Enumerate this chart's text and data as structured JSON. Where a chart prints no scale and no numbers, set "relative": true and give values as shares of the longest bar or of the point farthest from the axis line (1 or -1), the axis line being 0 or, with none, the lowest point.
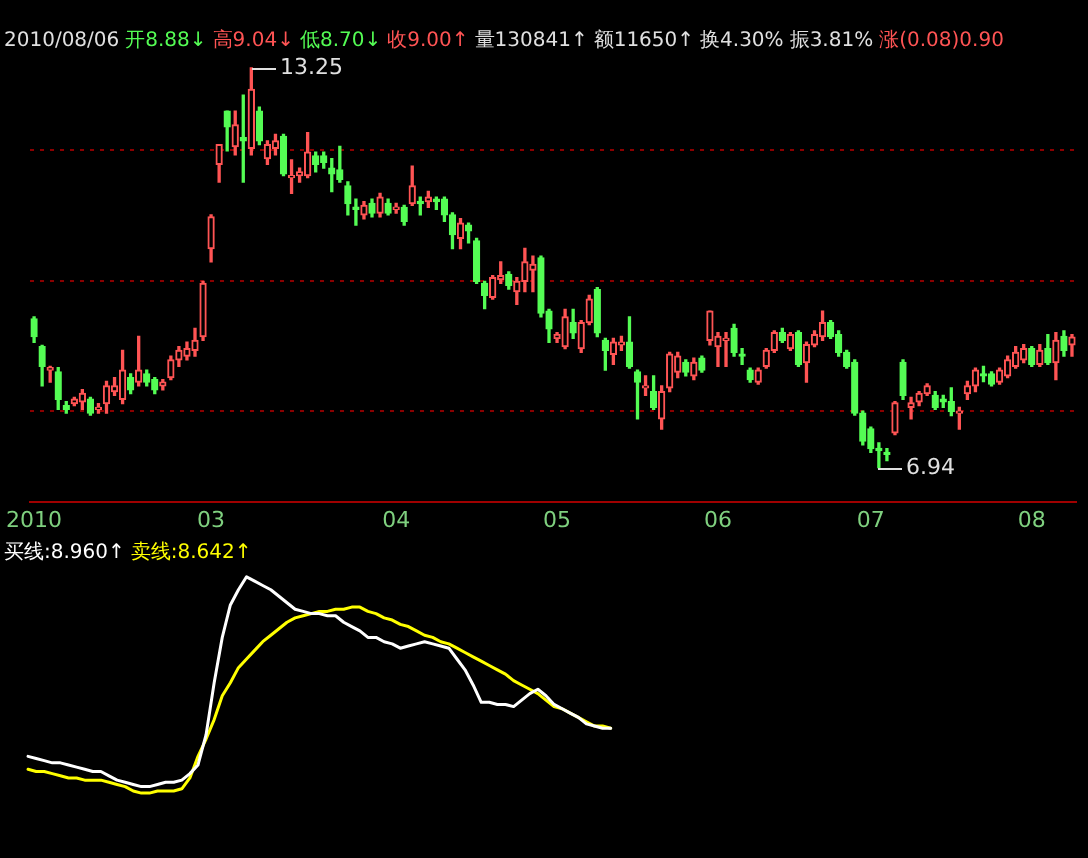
{
  "chart_data": [
    {
      "type": "candlestick",
      "annotations": [
        "2010/08/06",
        "开8.88↓",
        "高9.04↓",
        "低8.70↓",
        "收9.00↑",
        "量130841↑",
        "额11650↑",
        "换4.30%",
        "振3.81%",
        "涨(0.08)0.90",
        "13.25",
        "6.94"
      ],
      "categories": [
        "2010",
        null,
        null,
        null,
        null,
        null,
        null,
        null,
        null,
        null,
        null,
        null,
        null,
        null,
        null,
        null,
        null,
        null,
        null,
        null,
        null,
        null,
        "03",
        null,
        null,
        null,
        null,
        null,
        null,
        null,
        null,
        null,
        null,
        null,
        null,
        null,
        null,
        null,
        null,
        null,
        null,
        null,
        null,
        null,
        null,
        "04",
        null,
        null,
        null,
        null,
        null,
        null,
        null,
        null,
        null,
        null,
        null,
        null,
        null,
        null,
        null,
        null,
        null,
        null,
        null,
        "05",
        null,
        null,
        null,
        null,
        null,
        null,
        null,
        null,
        null,
        null,
        null,
        null,
        null,
        null,
        null,
        null,
        null,
        null,
        null,
        "06",
        null,
        null,
        null,
        null,
        null,
        null,
        null,
        null,
        null,
        null,
        null,
        null,
        null,
        null,
        null,
        null,
        null,
        null,
        "07",
        null,
        null,
        null,
        null,
        null,
        null,
        null,
        null,
        null,
        null,
        null,
        null,
        null,
        null,
        null,
        null,
        null,
        null,
        null,
        "08",
        null,
        null,
        null,
        null,
        null
      ],
      "ohlc": [
        [
          9.29,
          9.32,
          8.92,
          9.01
        ],
        [
          8.85,
          8.87,
          8.23,
          8.54
        ],
        [
          8.48,
          8.54,
          8.29,
          8.52
        ],
        [
          8.45,
          8.52,
          7.86,
          8.02
        ],
        [
          7.92,
          7.98,
          7.8,
          7.86
        ],
        [
          7.95,
          8.05,
          7.92,
          8.02
        ],
        [
          7.98,
          8.17,
          7.86,
          8.11
        ],
        [
          8.02,
          8.05,
          7.77,
          7.8
        ],
        [
          7.86,
          7.95,
          7.8,
          7.89
        ],
        [
          7.95,
          8.3,
          7.8,
          8.23
        ],
        [
          8.14,
          8.36,
          8.08,
          8.23
        ],
        [
          8.02,
          8.79,
          7.95,
          8.48
        ],
        [
          8.36,
          8.42,
          8.11,
          8.17
        ],
        [
          8.29,
          9.01,
          8.23,
          8.48
        ],
        [
          8.42,
          8.48,
          8.23,
          8.29
        ],
        [
          8.33,
          8.36,
          8.11,
          8.17
        ],
        [
          8.23,
          8.33,
          8.17,
          8.29
        ],
        [
          8.36,
          8.7,
          8.33,
          8.64
        ],
        [
          8.64,
          8.85,
          8.54,
          8.79
        ],
        [
          8.7,
          8.92,
          8.64,
          8.82
        ],
        [
          8.79,
          9.14,
          8.7,
          8.95
        ],
        [
          9.01,
          9.88,
          8.95,
          9.85
        ],
        [
          10.4,
          10.93,
          10.19,
          10.9
        ],
        [
          11.73,
          12.04,
          11.45,
          12.04
        ],
        [
          12.57,
          12.57,
          11.94,
          12.32
        ],
        [
          12.01,
          12.57,
          11.88,
          12.35
        ],
        [
          12.15,
          12.82,
          11.45,
          12.1
        ],
        [
          11.98,
          13.25,
          11.88,
          12.91
        ],
        [
          12.57,
          12.63,
          12.04,
          12.1
        ],
        [
          11.82,
          12.1,
          11.73,
          12.04
        ],
        [
          11.98,
          12.2,
          11.88,
          12.1
        ],
        [
          12.17,
          12.2,
          11.55,
          11.58
        ],
        [
          11.52,
          11.8,
          11.27,
          11.55
        ],
        [
          11.55,
          11.67,
          11.45,
          11.61
        ],
        [
          11.55,
          12.23,
          11.52,
          11.92
        ],
        [
          11.86,
          11.92,
          11.61,
          11.73
        ],
        [
          11.86,
          11.92,
          11.67,
          11.76
        ],
        [
          11.67,
          11.82,
          11.3,
          11.58
        ],
        [
          11.64,
          12.01,
          11.45,
          11.49
        ],
        [
          11.39,
          11.45,
          10.93,
          11.11
        ],
        [
          11.05,
          11.18,
          10.77,
          11.02
        ],
        [
          10.93,
          11.14,
          10.87,
          11.08
        ],
        [
          11.11,
          11.18,
          10.9,
          10.96
        ],
        [
          10.96,
          11.27,
          10.9,
          11.21
        ],
        [
          11.11,
          11.18,
          10.93,
          10.96
        ],
        [
          11.02,
          11.11,
          10.96,
          11.05
        ],
        [
          11.05,
          11.08,
          10.77,
          10.83
        ],
        [
          11.11,
          11.7,
          11.08,
          11.39
        ],
        [
          11.14,
          11.21,
          10.93,
          11.11
        ],
        [
          11.14,
          11.3,
          11.05,
          11.21
        ],
        [
          11.18,
          11.21,
          11.02,
          11.14
        ],
        [
          11.18,
          11.21,
          10.83,
          10.93
        ],
        [
          10.93,
          10.96,
          10.4,
          10.62
        ],
        [
          10.56,
          10.87,
          10.4,
          10.8
        ],
        [
          10.77,
          10.8,
          10.49,
          10.68
        ],
        [
          10.52,
          10.56,
          9.85,
          9.88
        ],
        [
          9.85,
          9.88,
          9.45,
          9.66
        ],
        [
          9.63,
          9.97,
          9.6,
          9.94
        ],
        [
          9.91,
          10.19,
          9.85,
          9.97
        ],
        [
          9.99,
          10.03,
          9.76,
          9.82
        ],
        [
          9.72,
          9.94,
          9.52,
          9.88
        ],
        [
          9.88,
          10.4,
          9.72,
          10.19
        ],
        [
          10.06,
          10.28,
          9.72,
          10.15
        ],
        [
          10.25,
          10.28,
          9.32,
          9.38
        ],
        [
          9.41,
          9.44,
          8.92,
          9.13
        ],
        [
          8.98,
          9.07,
          8.92,
          9.04
        ],
        [
          8.85,
          9.44,
          8.82,
          9.32
        ],
        [
          9.23,
          9.44,
          8.98,
          9.07
        ],
        [
          8.82,
          9.26,
          8.76,
          9.23
        ],
        [
          9.23,
          9.66,
          9.2,
          9.6
        ],
        [
          9.75,
          9.78,
          9.01,
          9.07
        ],
        [
          8.95,
          8.98,
          8.48,
          8.79
        ],
        [
          8.73,
          8.98,
          8.57,
          8.92
        ],
        [
          8.88,
          9.01,
          8.79,
          8.92
        ],
        [
          8.92,
          9.32,
          8.51,
          8.54
        ],
        [
          8.45,
          8.48,
          7.71,
          8.29
        ],
        [
          8.2,
          8.39,
          8.08,
          8.23
        ],
        [
          8.14,
          8.39,
          7.86,
          7.89
        ],
        [
          7.71,
          8.23,
          7.55,
          8.14
        ],
        [
          8.2,
          8.76,
          8.14,
          8.73
        ],
        [
          8.45,
          8.76,
          8.36,
          8.7
        ],
        [
          8.6,
          8.64,
          8.39,
          8.45
        ],
        [
          8.39,
          8.67,
          8.33,
          8.6
        ],
        [
          8.67,
          8.7,
          8.45,
          8.48
        ],
        [
          8.95,
          9.41,
          8.88,
          9.41
        ],
        [
          8.85,
          9.07,
          8.54,
          9.01
        ],
        [
          8.95,
          9.07,
          8.54,
          8.98
        ],
        [
          9.14,
          9.2,
          8.7,
          8.76
        ],
        [
          8.73,
          8.82,
          8.57,
          8.7
        ],
        [
          8.48,
          8.51,
          8.29,
          8.33
        ],
        [
          8.29,
          8.51,
          8.26,
          8.48
        ],
        [
          8.54,
          8.82,
          8.51,
          8.79
        ],
        [
          8.79,
          9.1,
          8.76,
          9.07
        ],
        [
          9.07,
          9.14,
          8.92,
          8.95
        ],
        [
          8.82,
          9.07,
          8.79,
          9.04
        ],
        [
          9.07,
          9.1,
          8.54,
          8.57
        ],
        [
          8.6,
          8.92,
          8.29,
          8.88
        ],
        [
          8.88,
          9.1,
          8.85,
          9.04
        ],
        [
          9.01,
          9.41,
          8.95,
          9.23
        ],
        [
          9.23,
          9.26,
          8.98,
          9.01
        ],
        [
          9.04,
          9.1,
          8.7,
          8.76
        ],
        [
          8.76,
          8.79,
          8.51,
          8.54
        ],
        [
          8.6,
          8.64,
          7.77,
          7.8
        ],
        [
          7.8,
          7.83,
          7.3,
          7.36
        ],
        [
          7.55,
          7.58,
          7.18,
          7.24
        ],
        [
          7.24,
          7.33,
          6.94,
          7.21
        ],
        [
          7.18,
          7.24,
          7.05,
          7.15
        ],
        [
          7.49,
          7.98,
          7.46,
          7.96
        ],
        [
          8.6,
          8.64,
          8.02,
          8.08
        ],
        [
          7.89,
          8.05,
          7.71,
          7.96
        ],
        [
          7.98,
          8.14,
          7.92,
          8.11
        ],
        [
          8.11,
          8.26,
          8.08,
          8.23
        ],
        [
          8.08,
          8.14,
          7.86,
          7.89
        ],
        [
          8.02,
          8.08,
          7.89,
          7.98
        ],
        [
          7.98,
          8.2,
          7.76,
          7.83
        ],
        [
          7.8,
          7.89,
          7.55,
          7.83
        ],
        [
          8.11,
          8.3,
          8.02,
          8.23
        ],
        [
          8.23,
          8.51,
          8.14,
          8.48
        ],
        [
          8.42,
          8.54,
          8.3,
          8.39
        ],
        [
          8.42,
          8.45,
          8.23,
          8.26
        ],
        [
          8.29,
          8.51,
          8.26,
          8.48
        ],
        [
          8.39,
          8.7,
          8.36,
          8.64
        ],
        [
          8.54,
          8.85,
          8.51,
          8.76
        ],
        [
          8.64,
          8.88,
          8.6,
          8.82
        ],
        [
          8.82,
          8.85,
          8.54,
          8.57
        ],
        [
          8.57,
          8.88,
          8.54,
          8.79
        ],
        [
          8.82,
          9.04,
          8.57,
          8.6
        ],
        [
          8.6,
          9.07,
          8.33,
          8.95
        ],
        [
          9.01,
          9.1,
          8.7,
          8.79
        ],
        [
          8.88,
          9.04,
          8.7,
          9.0
        ]
      ],
      "yticks": [
        {
          "value": 11.95,
          "label": null
        },
        {
          "value": 9.88,
          "label": null
        },
        {
          "value": 7.83,
          "label": null
        }
      ],
      "grid": "y",
      "tick_labels": "x"
    },
    {
      "type": "line",
      "relative": true,
      "tick_labels": false,
      "annotations": [
        "买线:8.960↑",
        "卖线:8.642↑"
      ],
      "categories": [
        null,
        null,
        null,
        null,
        null,
        null,
        null,
        null,
        null,
        null,
        null,
        null,
        null,
        null,
        null,
        null,
        null,
        null,
        null,
        null,
        null,
        null,
        null,
        null,
        null,
        null,
        null,
        null,
        null,
        null,
        null,
        null,
        null,
        null,
        null,
        null,
        null,
        null,
        null,
        null,
        null,
        null,
        null,
        null,
        null,
        null,
        null,
        null,
        null,
        null,
        null,
        null,
        null,
        null,
        null,
        null,
        null,
        null,
        null,
        null,
        null,
        null,
        null,
        null,
        null,
        null,
        null,
        null,
        null,
        null,
        null,
        null,
        null,
        null,
        null,
        null,
        null,
        null,
        null,
        null,
        null,
        null,
        null,
        null,
        null,
        null,
        null,
        null,
        null,
        null,
        null,
        null,
        null,
        null,
        null,
        null,
        null,
        null,
        null,
        null,
        null,
        null,
        null,
        null,
        null,
        null,
        null,
        null,
        null,
        null,
        null,
        null,
        null,
        null,
        null,
        null,
        null,
        null,
        null,
        null,
        null,
        null,
        null,
        null,
        null,
        null,
        null,
        null,
        null,
        null
      ],
      "series": [
        {
          "color": "#ffffff",
          "values": [
            0.17,
            0.16,
            0.15,
            0.14,
            0.14,
            0.13,
            0.12,
            0.11,
            0.1,
            0.1,
            0.08,
            0.06,
            0.05,
            0.04,
            0.03,
            0.03,
            0.04,
            0.05,
            0.05,
            0.06,
            0.09,
            0.13,
            0.27,
            0.51,
            0.72,
            0.87,
            0.94,
            1,
            0.98,
            0.96,
            0.94,
            0.91,
            0.88,
            0.85,
            0.84,
            0.83,
            0.83,
            0.82,
            0.82,
            0.79,
            0.77,
            0.75,
            0.72,
            0.72,
            0.7,
            0.69,
            0.67,
            0.68,
            0.69,
            0.7,
            0.69,
            0.68,
            0.67,
            0.62,
            0.57,
            0.5,
            0.42,
            0.42,
            0.41,
            0.41,
            0.4,
            0.43,
            0.46,
            0.48,
            0.45,
            0.41,
            0.39,
            0.37,
            0.35,
            0.32,
            0.31,
            0.3,
            0.3,
            null,
            null,
            null,
            null,
            null,
            null,
            null,
            null,
            null,
            null,
            null,
            null,
            null,
            null,
            null,
            null,
            null,
            null,
            null,
            null,
            null,
            null,
            null,
            null,
            null,
            null,
            null,
            null,
            null,
            null,
            null,
            null,
            null,
            null,
            null,
            null,
            null,
            null,
            null,
            null,
            null,
            null,
            null,
            null,
            null,
            null,
            null,
            null,
            null,
            null,
            null,
            null,
            null,
            null,
            null,
            null,
            null
          ]
        },
        {
          "color": "#ffff00",
          "values": [
            0.11,
            0.1,
            0.1,
            0.09,
            0.08,
            0.07,
            0.07,
            0.06,
            0.06,
            0.06,
            0.05,
            0.04,
            0.03,
            0.01,
            0,
            0,
            0.01,
            0.01,
            0.01,
            0.02,
            0.07,
            0.17,
            0.25,
            0.34,
            0.45,
            0.51,
            0.58,
            0.62,
            0.66,
            0.7,
            0.73,
            0.76,
            0.79,
            0.81,
            0.82,
            0.83,
            0.84,
            0.84,
            0.85,
            0.85,
            0.86,
            0.86,
            0.84,
            0.83,
            0.81,
            0.8,
            0.78,
            0.77,
            0.75,
            0.73,
            0.72,
            0.7,
            0.69,
            0.67,
            0.65,
            0.63,
            0.61,
            0.59,
            0.57,
            0.55,
            0.52,
            0.5,
            0.48,
            0.46,
            0.43,
            0.4,
            0.39,
            0.37,
            0.35,
            0.33,
            0.31,
            0.31,
            0.3,
            null,
            null,
            null,
            null,
            null,
            null,
            null,
            null,
            null,
            null,
            null,
            null,
            null,
            null,
            null,
            null,
            null,
            null,
            null,
            null,
            null,
            null,
            null,
            null,
            null,
            null,
            null,
            null,
            null,
            null,
            null,
            null,
            null,
            null,
            null,
            null,
            null,
            null,
            null,
            null,
            null,
            null,
            null,
            null,
            null,
            null,
            null,
            null,
            null,
            null,
            null,
            null,
            null,
            null,
            null,
            null,
            null
          ]
        }
      ]
    }
  ]
}
